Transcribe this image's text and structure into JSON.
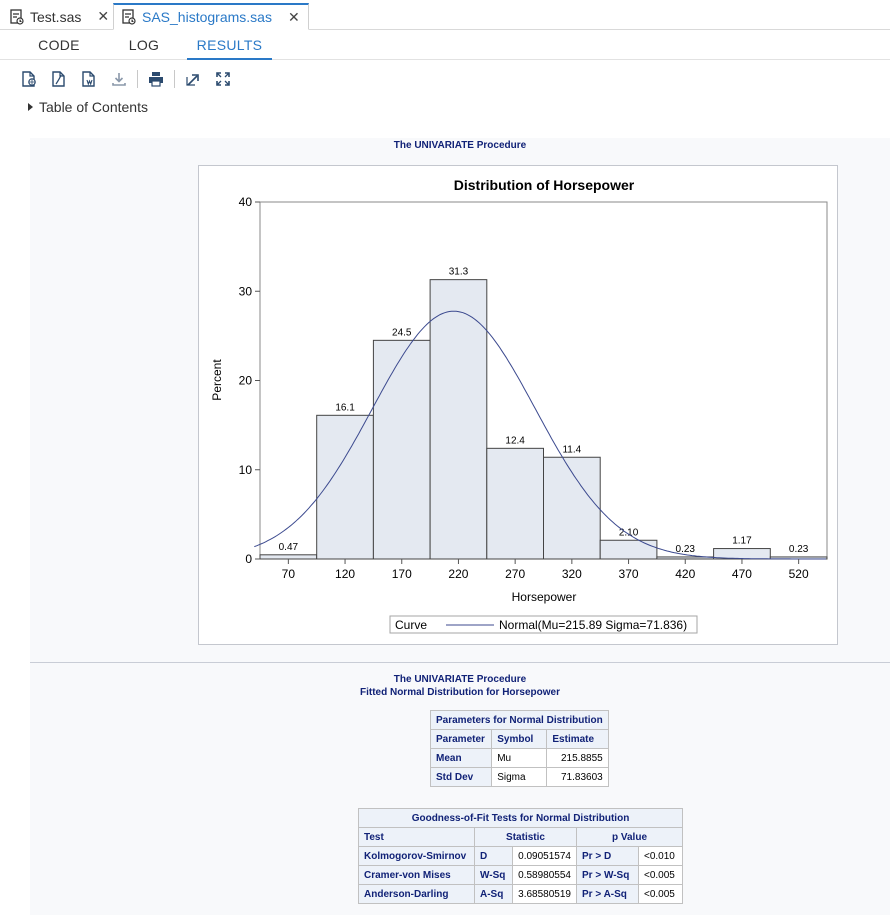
{
  "file_tabs": [
    {
      "title": "Test.sas",
      "close": "✕"
    },
    {
      "title": "SAS_histograms.sas",
      "close": "✕"
    }
  ],
  "view_tabs": [
    "CODE",
    "LOG",
    "RESULTS"
  ],
  "active_view_tab": "RESULTS",
  "toolbar": [
    "download-html-icon",
    "download-pdf-icon",
    "download-rtf-icon",
    "download-icon",
    "print-icon",
    "open-new-window-icon",
    "maximize-icon"
  ],
  "toc_label": "Table of Contents",
  "proc_title_1": "The UNIVARIATE Procedure",
  "proc_title_2": "The UNIVARIATE Procedure",
  "fitted_title": "Fitted Normal Distribution for Horsepower",
  "chart_data": {
    "type": "bar",
    "title": "Distribution of Horsepower",
    "xlabel": "Horsepower",
    "ylabel": "Percent",
    "bins": [
      70,
      120,
      170,
      220,
      270,
      320,
      370,
      420,
      470,
      520
    ],
    "values": [
      0.47,
      16.1,
      24.5,
      31.3,
      12.4,
      11.4,
      2.1,
      0.23,
      1.17,
      0.23
    ],
    "value_labels": [
      "0.47",
      "16.1",
      "24.5",
      "31.3",
      "12.4",
      "11.4",
      "2.10",
      "0.23",
      "1.17",
      "0.23"
    ],
    "bin_width": 50,
    "xlim": [
      45,
      545
    ],
    "ylim": [
      0,
      40
    ],
    "yticks": [
      "0",
      "10",
      "20",
      "30",
      "40"
    ],
    "xticks": [
      "70",
      "120",
      "170",
      "220",
      "270",
      "320",
      "370",
      "420",
      "470",
      "520"
    ],
    "curve": {
      "mu": 215.89,
      "sigma": 71.836
    },
    "legend_title": "Curve",
    "legend_entry": "Normal(Mu=215.89 Sigma=71.836)",
    "legend_placement": "bottom"
  },
  "params_table": {
    "title": "Parameters for Normal Distribution",
    "headers": [
      "Parameter",
      "Symbol",
      "Estimate"
    ],
    "rows": [
      [
        "Mean",
        "Mu",
        "215.8855"
      ],
      [
        "Std Dev",
        "Sigma",
        "71.83603"
      ]
    ]
  },
  "gof_table": {
    "title": "Goodness-of-Fit Tests for Normal Distribution",
    "headers": [
      "Test",
      "Statistic",
      "p Value"
    ],
    "rows": [
      [
        "Kolmogorov-Smirnov",
        "D",
        "0.09051574",
        "Pr > D",
        "<0.010"
      ],
      [
        "Cramer-von Mises",
        "W-Sq",
        "0.58980554",
        "Pr > W-Sq",
        "<0.005"
      ],
      [
        "Anderson-Darling",
        "A-Sq",
        "3.68580519",
        "Pr > A-Sq",
        "<0.005"
      ]
    ]
  },
  "colors": {
    "accent": "#2a79c7",
    "sas_header": "#112277",
    "bar_fill": "#e4e9f1",
    "curve": "#3c4a8f"
  }
}
